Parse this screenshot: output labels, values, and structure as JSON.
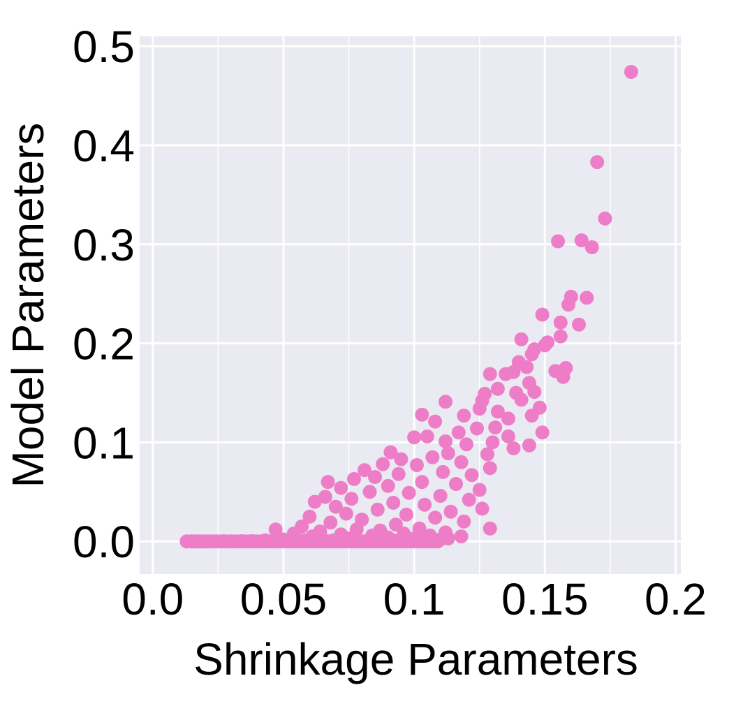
{
  "chart_data": {
    "type": "scatter",
    "title": "",
    "xlabel": "Shrinkage Parameters",
    "ylabel": "Model Parameters",
    "xlim": [
      -0.005,
      0.202
    ],
    "ylim": [
      -0.033,
      0.51
    ],
    "xticks": [
      0.0,
      0.05,
      0.1,
      0.15,
      0.2
    ],
    "xtick_labels": [
      "0.0",
      "0.05",
      "0.1",
      "0.15",
      "0.2"
    ],
    "yticks": [
      0.0,
      0.1,
      0.2,
      0.3,
      0.4,
      0.5
    ],
    "ytick_labels": [
      "0.0",
      "0.1",
      "0.2",
      "0.3",
      "0.4",
      "0.5"
    ],
    "minor_grid_x": [
      0.025,
      0.075,
      0.125,
      0.175
    ],
    "grid": true,
    "legend": "none",
    "colors": {
      "point": "#EE7DC8",
      "plot_background": "#EAEAF2",
      "grid": "#FFFFFF"
    },
    "series": [
      {
        "points": [
          [
            0.183,
            0.474
          ],
          [
            0.17,
            0.383
          ],
          [
            0.173,
            0.326
          ],
          [
            0.155,
            0.303
          ],
          [
            0.164,
            0.304
          ],
          [
            0.168,
            0.297
          ],
          [
            0.16,
            0.247
          ],
          [
            0.166,
            0.246
          ],
          [
            0.159,
            0.239
          ],
          [
            0.149,
            0.229
          ],
          [
            0.156,
            0.221
          ],
          [
            0.163,
            0.219
          ],
          [
            0.156,
            0.207
          ],
          [
            0.141,
            0.204
          ],
          [
            0.151,
            0.201
          ],
          [
            0.15,
            0.198
          ],
          [
            0.146,
            0.194
          ],
          [
            0.145,
            0.189
          ],
          [
            0.14,
            0.181
          ],
          [
            0.143,
            0.176
          ],
          [
            0.158,
            0.175
          ],
          [
            0.154,
            0.172
          ],
          [
            0.157,
            0.166
          ],
          [
            0.129,
            0.169
          ],
          [
            0.135,
            0.169
          ],
          [
            0.138,
            0.171
          ],
          [
            0.144,
            0.16
          ],
          [
            0.132,
            0.154
          ],
          [
            0.139,
            0.15
          ],
          [
            0.146,
            0.151
          ],
          [
            0.127,
            0.149
          ],
          [
            0.141,
            0.143
          ],
          [
            0.126,
            0.142
          ],
          [
            0.112,
            0.141
          ],
          [
            0.148,
            0.135
          ],
          [
            0.125,
            0.134
          ],
          [
            0.132,
            0.131
          ],
          [
            0.145,
            0.127
          ],
          [
            0.119,
            0.127
          ],
          [
            0.103,
            0.128
          ],
          [
            0.136,
            0.124
          ],
          [
            0.108,
            0.121
          ],
          [
            0.131,
            0.115
          ],
          [
            0.124,
            0.114
          ],
          [
            0.149,
            0.11
          ],
          [
            0.117,
            0.11
          ],
          [
            0.136,
            0.106
          ],
          [
            0.105,
            0.106
          ],
          [
            0.1,
            0.105
          ],
          [
            0.112,
            0.101
          ],
          [
            0.13,
            0.1
          ],
          [
            0.12,
            0.098
          ],
          [
            0.144,
            0.097
          ],
          [
            0.138,
            0.094
          ],
          [
            0.091,
            0.09
          ],
          [
            0.113,
            0.089
          ],
          [
            0.128,
            0.088
          ],
          [
            0.107,
            0.085
          ],
          [
            0.095,
            0.083
          ],
          [
            0.118,
            0.08
          ],
          [
            0.088,
            0.078
          ],
          [
            0.101,
            0.077
          ],
          [
            0.129,
            0.074
          ],
          [
            0.081,
            0.072
          ],
          [
            0.111,
            0.07
          ],
          [
            0.094,
            0.068
          ],
          [
            0.122,
            0.067
          ],
          [
            0.085,
            0.065
          ],
          [
            0.077,
            0.063
          ],
          [
            0.067,
            0.06
          ],
          [
            0.103,
            0.06
          ],
          [
            0.116,
            0.058
          ],
          [
            0.09,
            0.056
          ],
          [
            0.072,
            0.054
          ],
          [
            0.125,
            0.052
          ],
          [
            0.083,
            0.05
          ],
          [
            0.098,
            0.049
          ],
          [
            0.11,
            0.046
          ],
          [
            0.066,
            0.045
          ],
          [
            0.076,
            0.043
          ],
          [
            0.121,
            0.042
          ],
          [
            0.062,
            0.04
          ],
          [
            0.092,
            0.039
          ],
          [
            0.104,
            0.037
          ],
          [
            0.07,
            0.035
          ],
          [
            0.126,
            0.033
          ],
          [
            0.086,
            0.032
          ],
          [
            0.114,
            0.03
          ],
          [
            0.074,
            0.028
          ],
          [
            0.097,
            0.027
          ],
          [
            0.06,
            0.025
          ],
          [
            0.108,
            0.024
          ],
          [
            0.08,
            0.022
          ],
          [
            0.119,
            0.02
          ],
          [
            0.068,
            0.019
          ],
          [
            0.093,
            0.017
          ],
          [
            0.057,
            0.015
          ],
          [
            0.129,
            0.013
          ],
          [
            0.102,
            0.013
          ],
          [
            0.047,
            0.012
          ],
          [
            0.078,
            0.012
          ],
          [
            0.087,
            0.011
          ],
          [
            0.064,
            0.01
          ],
          [
            0.112,
            0.009
          ],
          [
            0.054,
            0.008
          ],
          [
            0.096,
            0.008
          ],
          [
            0.072,
            0.007
          ],
          [
            0.084,
            0.006
          ],
          [
            0.106,
            0.006
          ],
          [
            0.118,
            0.005
          ],
          [
            0.061,
            0.005
          ],
          [
            0.09,
            0.004
          ],
          [
            0.113,
            0.003
          ],
          [
            0.075,
            0.003
          ],
          [
            0.1,
            0.003
          ],
          [
            0.05,
            0.002
          ],
          [
            0.083,
            0.002
          ],
          [
            0.11,
            0.002
          ],
          [
            0.069,
            0.001
          ],
          [
            0.092,
            0.001
          ],
          [
            0.043,
            0.001
          ],
          [
            0.058,
            0.001
          ],
          [
            0.098,
            0.001
          ],
          [
            0.066,
            0.0007
          ],
          [
            0.078,
            0.0005
          ],
          [
            0.086,
            0.0004
          ],
          [
            0.104,
            0.0003
          ],
          [
            0.038,
            0.0003
          ],
          [
            0.034,
            0.0002
          ],
          [
            0.052,
            0.0002
          ],
          [
            0.03,
            0.0001
          ],
          [
            0.027,
            0.0001
          ],
          [
            0.024,
            0.0
          ],
          [
            0.021,
            0.0
          ],
          [
            0.019,
            0.0
          ],
          [
            0.017,
            0.0
          ],
          [
            0.015,
            0.0
          ],
          [
            0.013,
            0.0
          ]
        ]
      }
    ]
  }
}
